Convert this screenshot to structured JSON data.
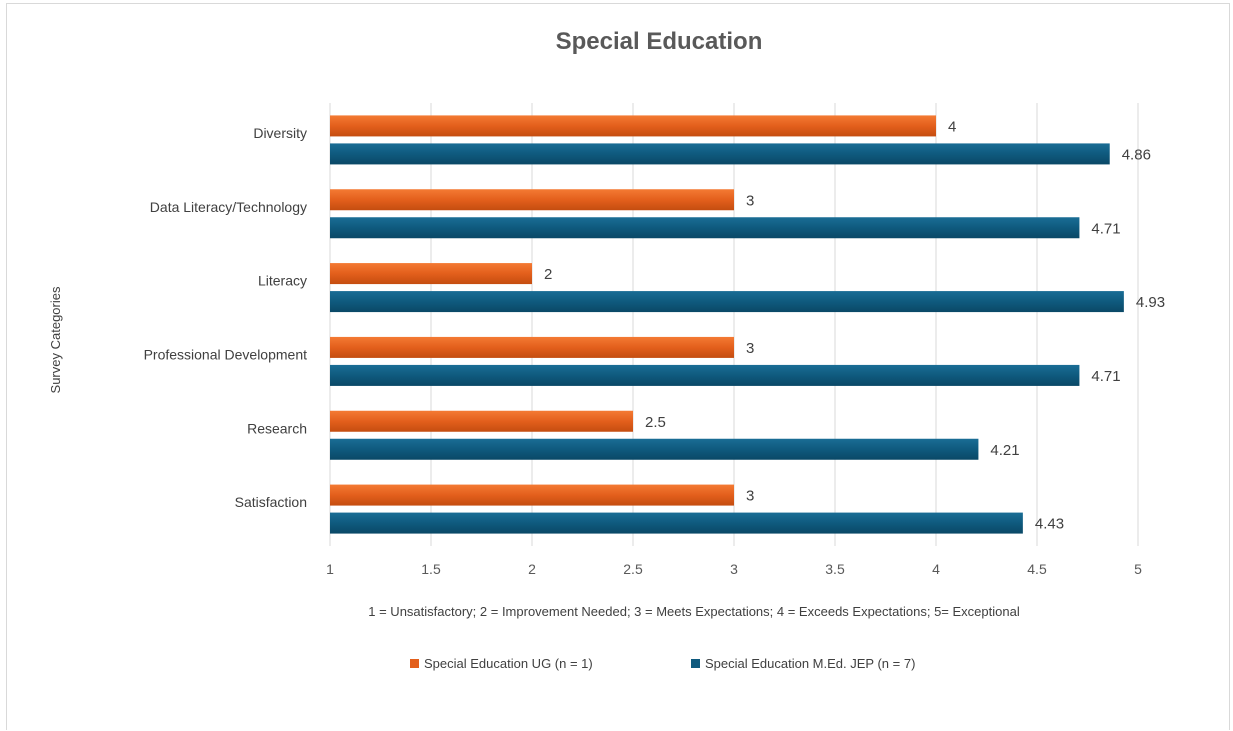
{
  "chart_data": {
    "type": "bar",
    "orientation": "horizontal",
    "title": "Special Education",
    "ylabel": "Survey Categories",
    "xlabel": "1 = Unsatisfactory; 2 = Improvement Needed; 3 = Meets Expectations; 4 = Exceeds Expectations; 5=  Exceptional",
    "categories": [
      "Diversity",
      "Data Literacy/Technology",
      "Literacy",
      "Professional Development",
      "Research",
      "Satisfaction"
    ],
    "series": [
      {
        "name": "Special Education UG (n = 1)",
        "color": "#e35f1c",
        "values": [
          4,
          3,
          2,
          3,
          2.5,
          3
        ],
        "labels": [
          "4",
          "3",
          "2",
          "3",
          "2.5",
          "3"
        ]
      },
      {
        "name": "Special Education M.Ed. JEP (n = 7)",
        "color": "#0f5a7e",
        "values": [
          4.86,
          4.71,
          4.93,
          4.71,
          4.21,
          4.43
        ],
        "labels": [
          "4.86",
          "4.71",
          "4.93",
          "4.71",
          "4.21",
          "4.43"
        ]
      }
    ],
    "xlim": [
      1,
      5
    ],
    "xticks": [
      1,
      1.5,
      2,
      2.5,
      3,
      3.5,
      4,
      4.5,
      5
    ],
    "xtick_labels": [
      "1",
      "1.5",
      "2",
      "2.5",
      "3",
      "3.5",
      "4",
      "4.5",
      "5"
    ],
    "grid": true,
    "legend_position": "bottom"
  }
}
